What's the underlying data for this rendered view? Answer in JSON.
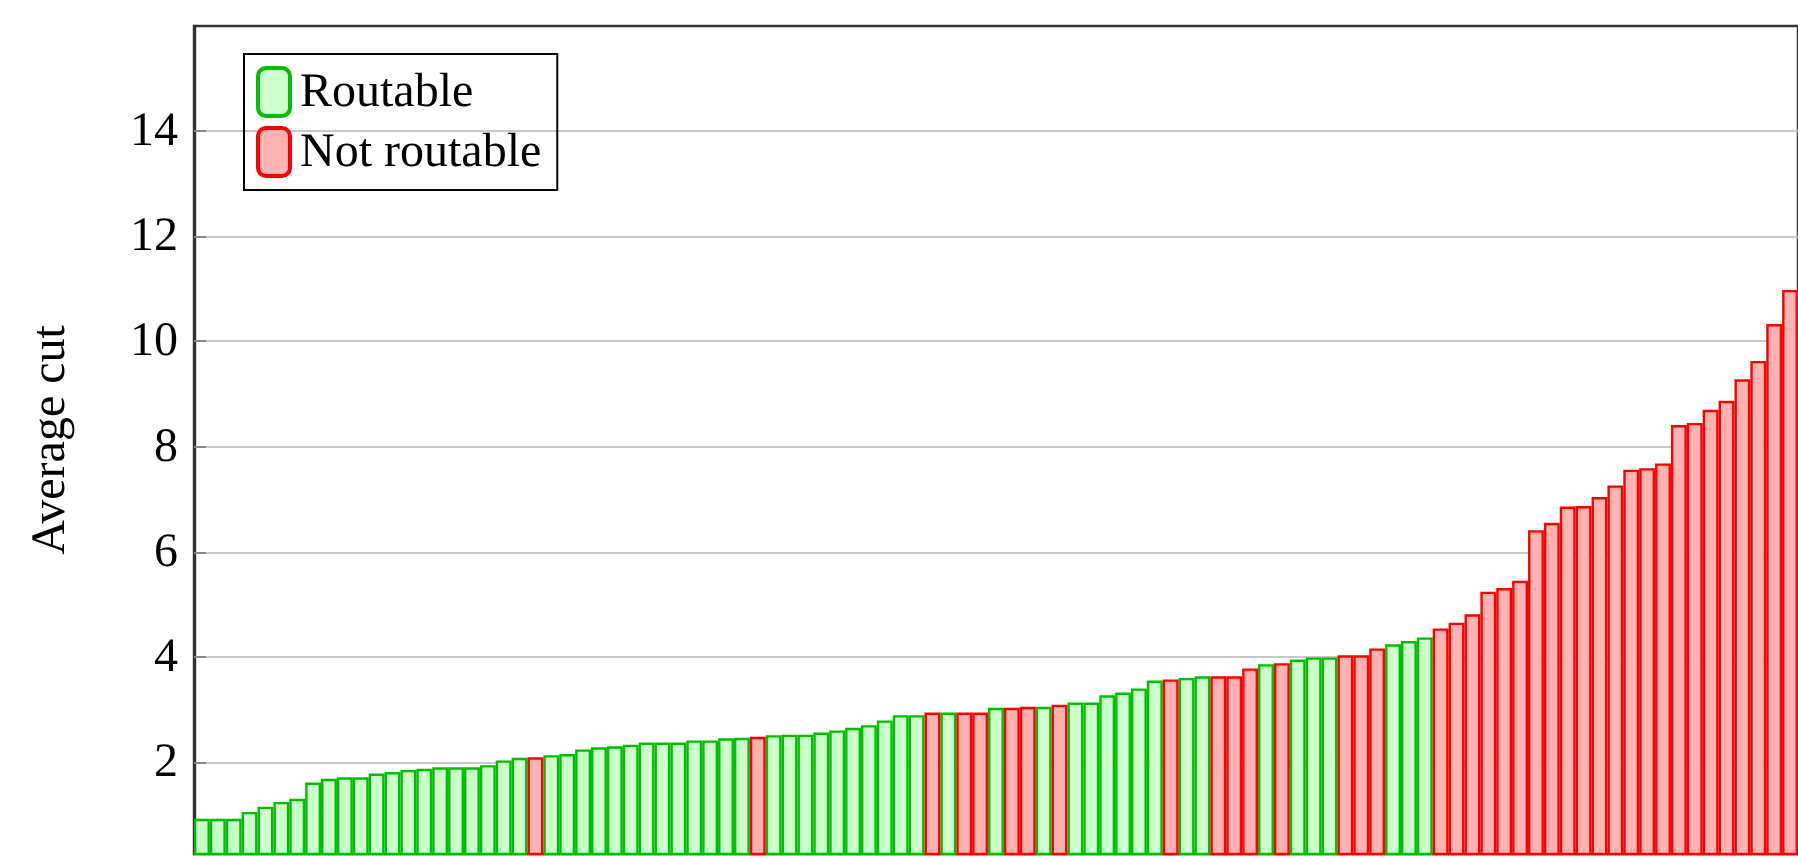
{
  "chart_data": {
    "type": "bar",
    "ylabel": "Average cut",
    "categories": [
      null,
      null,
      null,
      null,
      null,
      null,
      null,
      null,
      null,
      null,
      null,
      null,
      null,
      null,
      null,
      null,
      null,
      null,
      null,
      null,
      null,
      null,
      null,
      null,
      null,
      null,
      null,
      null,
      null,
      null,
      null,
      null,
      null,
      null,
      null,
      null,
      null,
      null,
      null,
      null,
      null,
      null,
      null,
      null,
      null,
      null,
      null,
      null,
      null,
      null,
      null,
      null,
      null,
      null,
      null,
      null,
      null,
      null,
      null,
      null,
      null,
      null,
      null,
      null,
      null,
      null,
      null,
      null,
      null,
      null,
      null,
      null,
      null,
      null,
      null,
      null,
      null,
      null,
      null,
      null,
      null,
      null,
      null,
      null,
      null,
      null,
      null,
      null,
      null,
      null,
      null,
      null,
      null,
      null,
      null,
      null,
      null,
      null,
      null,
      null,
      null
    ],
    "series": [
      {
        "name": "Routable",
        "color": "#ccffcc",
        "values": [
          0.92,
          0.92,
          0.92,
          1.05,
          1.15,
          1.24,
          1.3,
          1.61,
          1.68,
          1.71,
          1.71,
          1.78,
          1.81,
          1.85,
          1.87,
          1.9,
          1.9,
          1.9,
          1.94,
          2.03,
          2.08,
          null,
          2.13,
          2.15,
          2.24,
          2.28,
          2.3,
          2.33,
          2.37,
          2.37,
          2.37,
          2.41,
          2.41,
          2.45,
          2.46,
          null,
          2.51,
          2.52,
          2.52,
          2.56,
          2.6,
          2.65,
          2.7,
          2.79,
          2.89,
          2.89,
          null,
          2.94,
          null,
          null,
          3.03,
          null,
          null,
          3.05,
          null,
          3.13,
          3.13,
          3.27,
          3.32,
          3.4,
          3.55,
          null,
          3.6,
          3.63,
          null,
          null,
          null,
          3.86,
          null,
          3.95,
          3.99,
          3.99,
          null,
          null,
          null,
          4.24,
          4.3,
          4.37,
          null,
          null,
          null,
          null,
          null,
          null,
          null,
          null,
          null,
          null,
          null,
          null,
          null,
          null,
          null,
          null,
          null,
          null,
          null,
          null,
          null,
          null,
          null
        ]
      },
      {
        "name": "Not routable",
        "color": "#ffb3b3",
        "values": [
          null,
          null,
          null,
          null,
          null,
          null,
          null,
          null,
          null,
          null,
          null,
          null,
          null,
          null,
          null,
          null,
          null,
          null,
          null,
          null,
          null,
          2.09,
          null,
          null,
          null,
          null,
          null,
          null,
          null,
          null,
          null,
          null,
          null,
          null,
          null,
          2.48,
          null,
          null,
          null,
          null,
          null,
          null,
          null,
          null,
          null,
          null,
          2.94,
          null,
          2.94,
          2.94,
          null,
          3.03,
          3.05,
          null,
          3.09,
          null,
          null,
          null,
          null,
          null,
          null,
          3.57,
          null,
          null,
          3.63,
          3.63,
          3.78,
          null,
          3.88,
          null,
          null,
          null,
          4.03,
          4.03,
          4.16,
          null,
          null,
          null,
          4.54,
          4.65,
          4.81,
          5.24,
          5.31,
          5.45,
          6.41,
          6.55,
          6.86,
          6.87,
          7.04,
          7.26,
          7.56,
          7.59,
          7.68,
          8.41,
          8.45,
          8.7,
          8.87,
          9.28,
          9.63,
          10.33,
          10.98
        ]
      }
    ],
    "ylim": [
      0.25,
      16
    ],
    "yticks": [
      2,
      4,
      6,
      8,
      10,
      12,
      14
    ],
    "grid": "y",
    "legend": "top left",
    "tick_labels": "y"
  }
}
